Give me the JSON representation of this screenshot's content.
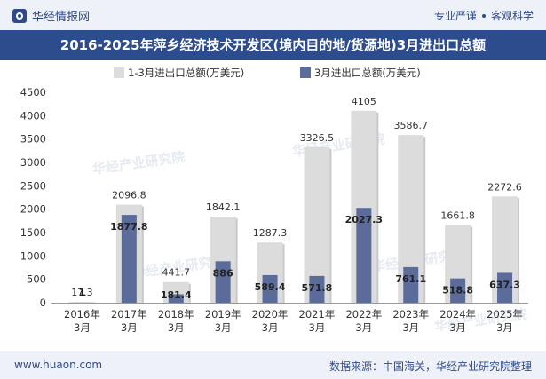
{
  "header": {
    "brand": "华经情报网",
    "slogan_left": "专业严谨",
    "slogan_right": "客观科学"
  },
  "title": "2016-2025年萍乡经济技术开发区(境内目的地/货源地)3月进出口总额",
  "footer": {
    "url": "www.huaon.com",
    "source": "数据来源：中国海关，华经产业研究院整理"
  },
  "watermark": "华经产业研究院",
  "colors": {
    "series1": "#dcdcdc",
    "series2": "#5b6b9a",
    "title_bg": "#2d4c8e",
    "brand": "#2e4a8a"
  },
  "chart_data": {
    "type": "bar",
    "categories": [
      "2016年\n3月",
      "2017年\n3月",
      "2018年\n3月",
      "2019年\n3月",
      "2020年\n3月",
      "2021年\n3月",
      "2022年\n3月",
      "2023年\n3月",
      "2024年\n3月",
      "2025年\n3月"
    ],
    "series": [
      {
        "name": "1-3月进出口总额(万美元)",
        "values": [
          17.3,
          2096.8,
          441.7,
          1842.1,
          1287.3,
          3326.5,
          4105,
          3586.7,
          1661.8,
          2272.6
        ]
      },
      {
        "name": "3月进出口总额(万美元)",
        "values": [
          1,
          1877.8,
          181.4,
          886,
          589.4,
          571.8,
          2027.3,
          761.1,
          518.8,
          637.3
        ]
      }
    ],
    "ylim": [
      0,
      4500
    ],
    "yticks": [
      0,
      500,
      1000,
      1500,
      2000,
      2500,
      3000,
      3500,
      4000,
      4500
    ],
    "legend_position": "top-center",
    "grid": false
  }
}
